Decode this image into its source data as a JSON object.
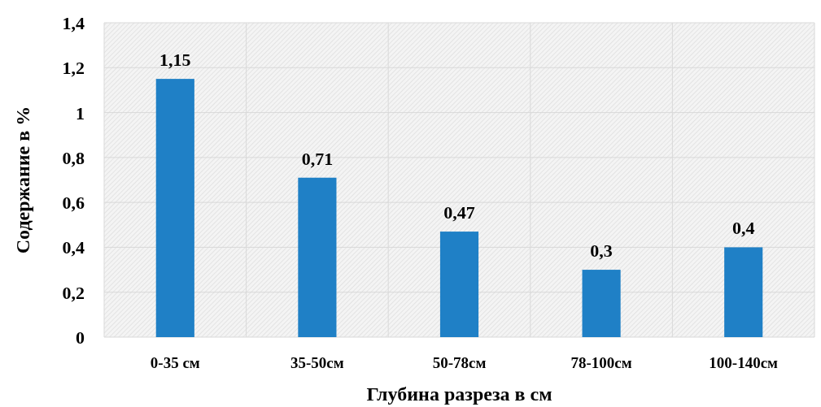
{
  "chart_data": {
    "type": "bar",
    "xlabel": "Глубина разреза в см",
    "ylabel": "Содержание в %",
    "categories": [
      "0-35 см",
      "35-50см",
      "50-78см",
      "78-100см",
      "100-140см"
    ],
    "values": [
      1.15,
      0.71,
      0.47,
      0.3,
      0.4
    ],
    "value_labels": [
      "1,15",
      "0,71",
      "0,47",
      "0,3",
      "0,4"
    ],
    "color": "#1f80c6",
    "ylim": [
      0,
      1.4
    ],
    "yticks": [
      0,
      {
        "value": 0.2,
        "label": "0,2"
      },
      {
        "value": 0.4,
        "label": "0,4"
      },
      {
        "value": 0.6,
        "label": "0,6"
      },
      {
        "value": 0.8,
        "label": "0,8"
      },
      1,
      {
        "value": 1.2,
        "label": "1,2"
      },
      {
        "value": 1.4,
        "label": "1,4"
      }
    ],
    "grid": true
  }
}
